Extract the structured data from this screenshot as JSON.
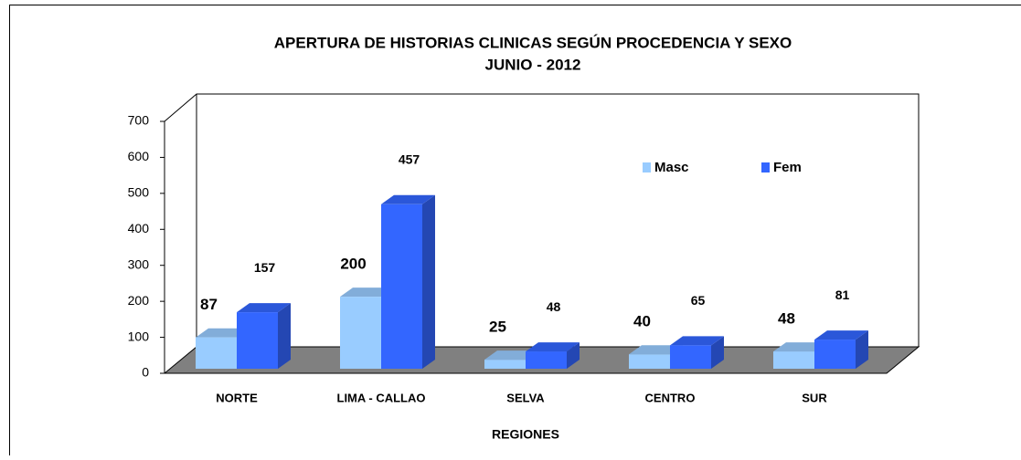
{
  "chart_data": {
    "type": "bar3d",
    "title": "APERTURA DE HISTORIAS CLINICAS SEGÚN PROCEDENCIA Y SEXO",
    "subtitle": "JUNIO - 2012",
    "x_label": "REGIONES",
    "categories": [
      "NORTE",
      "LIMA - CALLAO",
      "SELVA",
      "CENTRO",
      "SUR"
    ],
    "series": [
      {
        "name": "Masc",
        "color": "#99ccff",
        "values": [
          87,
          200,
          25,
          40,
          48
        ]
      },
      {
        "name": "Fem",
        "color": "#3366ff",
        "values": [
          157,
          457,
          48,
          65,
          81
        ]
      }
    ],
    "ylim": [
      0,
      700
    ],
    "yticks": [
      0,
      100,
      200,
      300,
      400,
      500,
      600,
      700
    ]
  }
}
